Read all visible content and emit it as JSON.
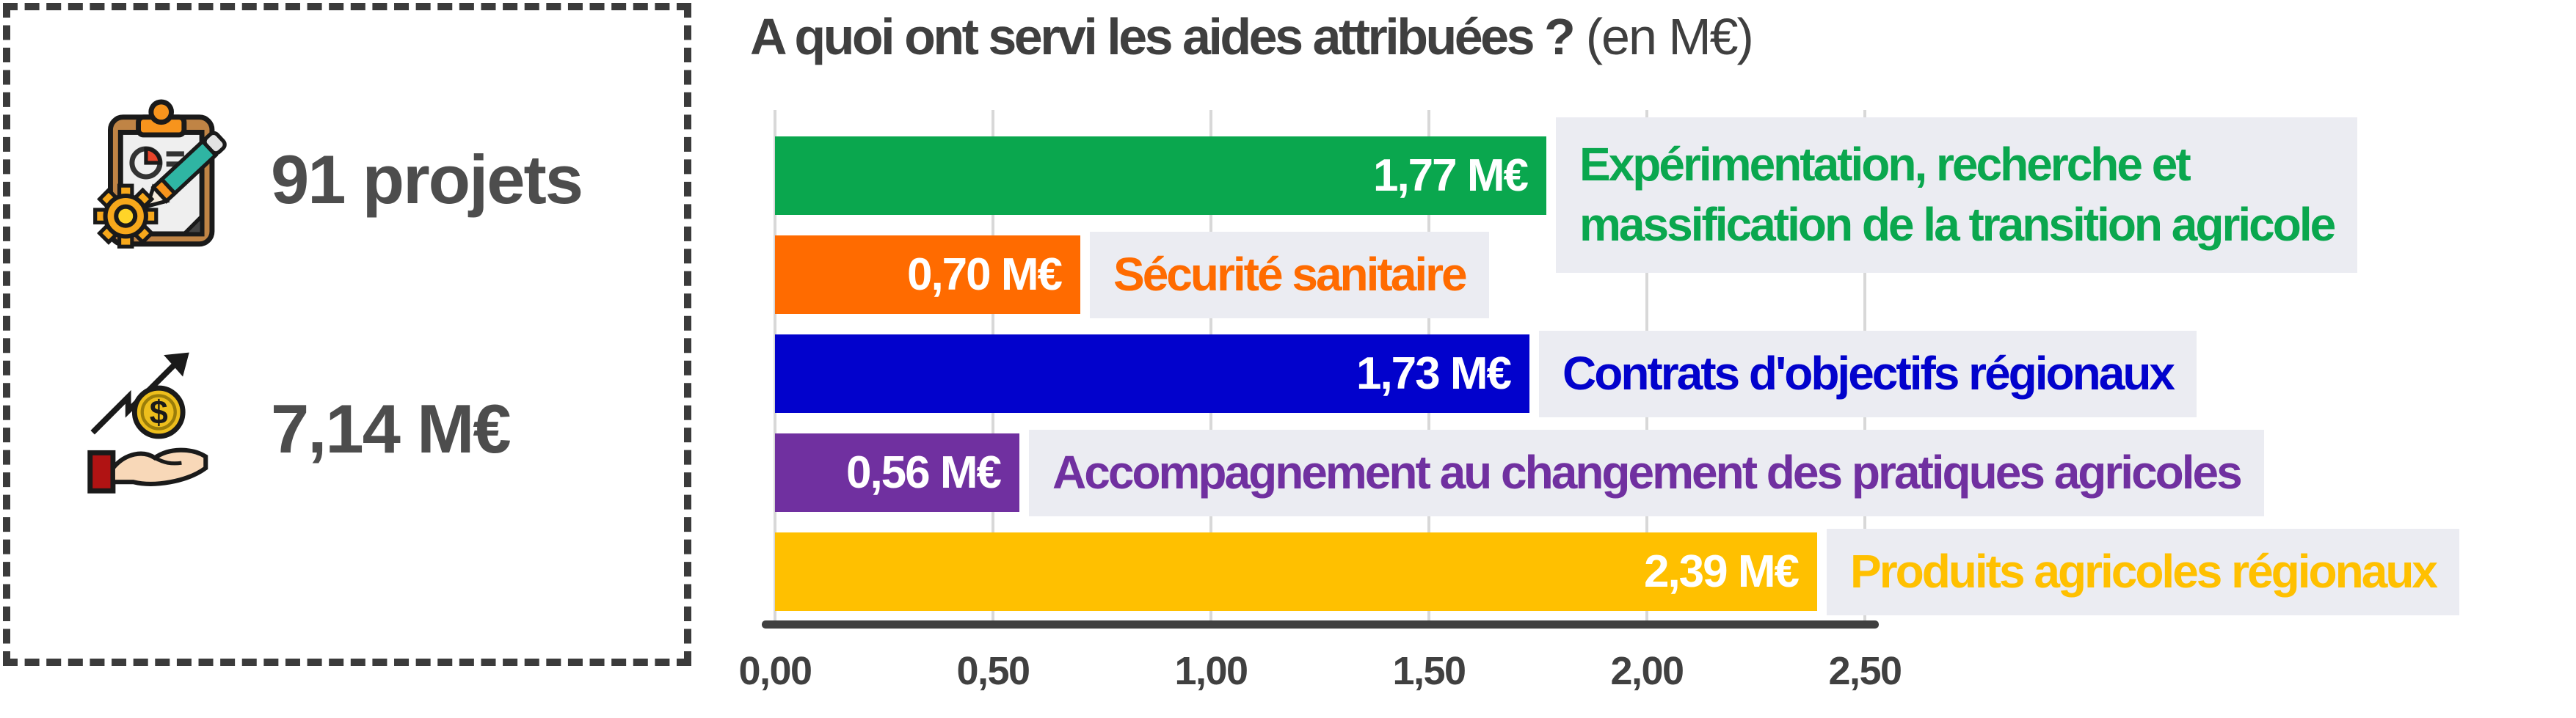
{
  "summary": {
    "items": [
      {
        "icon": "clipboard-gear-pencil-icon",
        "value": "91 projets"
      },
      {
        "icon": "hand-coin-arrow-icon",
        "value": "7,14 M€"
      }
    ]
  },
  "chart": {
    "title_bold": "A quoi ont servi les aides attribuées ?",
    "title_suffix": " (en M€)"
  },
  "chart_data": {
    "type": "bar",
    "orientation": "horizontal",
    "title": "A quoi ont servi les aides attribuées ? (en M€)",
    "unit": "M€",
    "categories": [
      "Expérimentation, recherche et massification de la transition agricole",
      "Sécurité sanitaire",
      "Contrats d'objectifs régionaux",
      "Accompagnement au changement des pratiques agricoles",
      "Produits agricoles régionaux"
    ],
    "values": [
      1.77,
      0.7,
      1.73,
      0.56,
      2.39
    ],
    "value_labels": [
      "1,77 M€",
      "0,70 M€",
      "1,73 M€",
      "0,56 M€",
      "2,39 M€"
    ],
    "colors": [
      "#0AA74E",
      "#FF6B00",
      "#0202CC",
      "#7030A0",
      "#FFC000"
    ],
    "label_lines_display": [
      [
        "Expérimentation, recherche et",
        "massification de la transition agricole"
      ],
      [
        "Sécurité sanitaire"
      ],
      [
        "Contrats d'objectifs régionaux"
      ],
      [
        "Accompagnement au changement des pratiques agricoles"
      ],
      [
        "Produits agricoles régionaux"
      ]
    ],
    "xlim": [
      0,
      2.5
    ],
    "x_ticks": [
      "0,00",
      "0,50",
      "1,00",
      "1,50",
      "2,00",
      "2,50"
    ],
    "grid": true,
    "legend": false,
    "label_box_bg": "#EBECF2",
    "axis_color": "#404040"
  }
}
